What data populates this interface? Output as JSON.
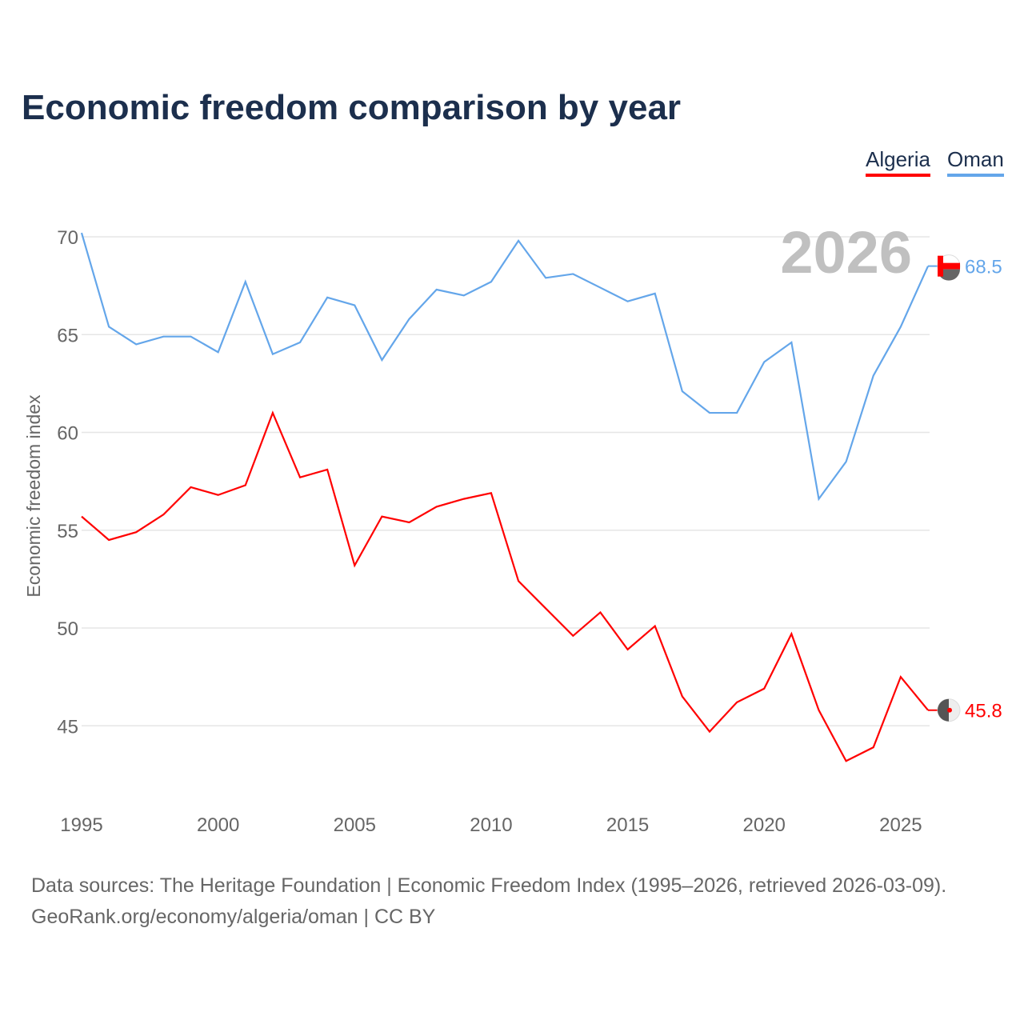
{
  "title": "Economic freedom comparison by year",
  "legend": [
    {
      "name": "Algeria",
      "color": "#ff0000"
    },
    {
      "name": "Oman",
      "color": "#64a6ea"
    }
  ],
  "source_line1": "Data sources: The Heritage Foundation | Economic Freedom Index (1995–2026, retrieved 2026-03-09).",
  "source_line2": "GeoRank.org/economy/algeria/oman | CC BY",
  "chart_data": {
    "type": "line",
    "title": "Economic freedom comparison by year",
    "ylabel": "Economic freedom index",
    "xlabel": "",
    "year_label": "2026",
    "x": [
      1995,
      1996,
      1997,
      1998,
      1999,
      2000,
      2001,
      2002,
      2003,
      2004,
      2005,
      2006,
      2007,
      2008,
      2009,
      2010,
      2011,
      2012,
      2013,
      2014,
      2015,
      2016,
      2017,
      2018,
      2019,
      2020,
      2021,
      2022,
      2023,
      2024,
      2025,
      2026
    ],
    "xticks": [
      "1995",
      "2000",
      "2005",
      "2010",
      "2015",
      "2020",
      "2025"
    ],
    "yticks": [
      "45",
      "50",
      "55",
      "60",
      "65",
      "70"
    ],
    "xlim": [
      1995,
      2026
    ],
    "ylim": [
      41.5,
      71
    ],
    "grid": true,
    "legend_position": "top-right",
    "series": [
      {
        "name": "Oman",
        "color": "#64a6ea",
        "end_label": "68.5",
        "values": [
          70.2,
          65.4,
          64.5,
          64.9,
          64.9,
          64.1,
          67.7,
          64.0,
          64.6,
          66.9,
          66.5,
          63.7,
          65.8,
          67.3,
          67.0,
          67.7,
          69.8,
          67.9,
          68.1,
          67.4,
          66.7,
          67.1,
          62.1,
          61.0,
          61.0,
          63.6,
          64.6,
          56.6,
          58.5,
          62.9,
          65.4,
          68.5
        ]
      },
      {
        "name": "Algeria",
        "color": "#ff0000",
        "end_label": "45.8",
        "values": [
          55.7,
          54.5,
          54.9,
          55.8,
          57.2,
          56.8,
          57.3,
          61.0,
          57.7,
          58.1,
          53.2,
          55.7,
          55.4,
          56.2,
          56.6,
          56.9,
          52.4,
          51.0,
          49.6,
          50.8,
          48.9,
          50.1,
          46.5,
          44.7,
          46.2,
          46.9,
          49.7,
          45.8,
          43.2,
          43.9,
          47.5,
          45.8
        ]
      }
    ]
  }
}
